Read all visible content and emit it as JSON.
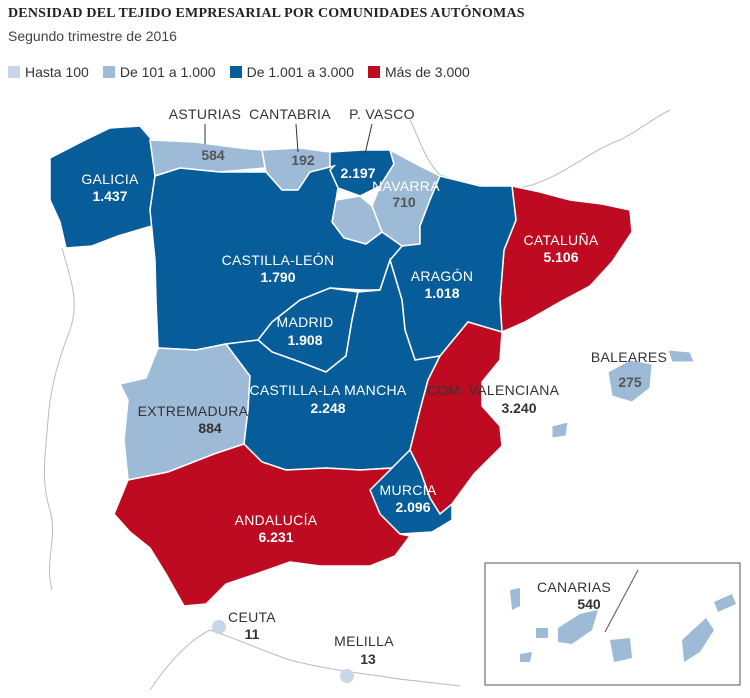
{
  "title": "DENSIDAD DEL TEJIDO EMPRESARIAL POR COMUNIDADES AUTÓNOMAS",
  "subtitle": "Segundo trimestre de 2016",
  "legend": [
    {
      "label": "Hasta 100",
      "color": "#c5d7e8"
    },
    {
      "label": "De 101 a 1.000",
      "color": "#9dbbd7"
    },
    {
      "label": "De 1.001 a 3.000",
      "color": "#075d99"
    },
    {
      "label": "Más de 3.000",
      "color": "#be0b22"
    }
  ],
  "regions": {
    "galicia": {
      "name": "GALICIA",
      "value": "1.437"
    },
    "asturias": {
      "name": "ASTURIAS",
      "value": "584"
    },
    "cantabria": {
      "name": "CANTABRIA",
      "value": "192"
    },
    "pvasco": {
      "name": "P. VASCO",
      "value": "2.197"
    },
    "navarra": {
      "name": "NAVARRA",
      "value": "710"
    },
    "cataluna": {
      "name": "CATALUÑA",
      "value": "5.106"
    },
    "castilla_leon": {
      "name": "CASTILLA-LEÓN",
      "value": "1.790"
    },
    "aragon": {
      "name": "ARAGÓN",
      "value": "1.018"
    },
    "madrid": {
      "name": "MADRID",
      "value": "1.908"
    },
    "baleares": {
      "name": "BALEARES",
      "value": "275"
    },
    "extremadura": {
      "name": "EXTREMADURA",
      "value": "884"
    },
    "castilla_la_mancha": {
      "name": "CASTILLA-LA MANCHA",
      "value": "2.248"
    },
    "com_valenciana": {
      "name": "COM. VALENCIANA",
      "value": "3.240"
    },
    "murcia": {
      "name": "MURCIA",
      "value": "2.096"
    },
    "andalucia": {
      "name": "ANDALUCÍA",
      "value": "6.231"
    },
    "canarias": {
      "name": "CANARIAS",
      "value": "540"
    },
    "ceuta": {
      "name": "CEUTA",
      "value": "11"
    },
    "melilla": {
      "name": "MELILLA",
      "value": "13"
    }
  }
}
